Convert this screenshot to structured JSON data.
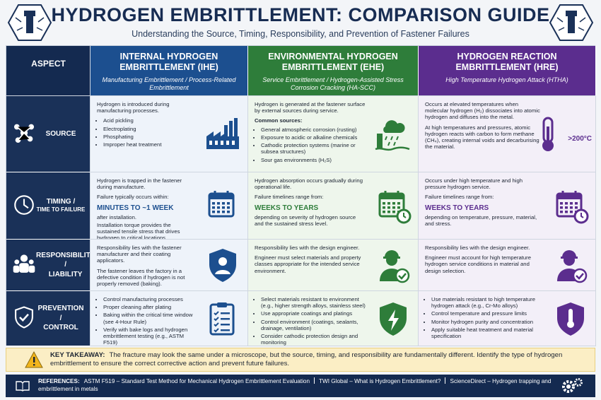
{
  "header": {
    "title": "HYDROGEN EMBRITTLEMENT: COMPARISON GUIDE",
    "subtitle": "Understanding the Source, Timing, Responsibility, and Prevention of Fastener Failures"
  },
  "table": {
    "corner": "ASPECT",
    "columns": [
      {
        "title": "INTERNAL HYDROGEN EMBRITTLEMENT (IHE)",
        "subtitle": "Manufacturing Embrittlement / Process-Related Embrittlement"
      },
      {
        "title": "ENVIRONMENTAL HYDROGEN EMBRITTLEMENT (EHE)",
        "subtitle": "Service Embrittlement / Hydrogen-Assisted Stress Corrosion Cracking (HA-SCC)"
      },
      {
        "title": "HYDROGEN REACTION EMBRITTLEMENT (HRE)",
        "subtitle": "High Temperature Hydrogen Attack (HTHA)"
      }
    ],
    "rows": [
      {
        "label": [
          "SOURCE"
        ],
        "cells": [
          {
            "blocks": [
              {
                "para": "Hydrogen is introduced during manufacturing processes."
              },
              {
                "bullets": [
                  "Acid pickling",
                  "Electroplating",
                  "Phosphating",
                  "Improper heat treatment"
                ]
              }
            ]
          },
          {
            "blocks": [
              {
                "para": "Hydrogen is generated at the fastener surface by external sources during service."
              },
              {
                "heading": "Common sources:"
              },
              {
                "bullets": [
                  "General atmospheric corrosion (rusting)",
                  "Exposure to acidic or alkaline chemicals",
                  "Cathodic protection systems (marine or subsea structures)",
                  "Sour gas environments (H₂S)"
                ]
              }
            ]
          },
          {
            "blocks": [
              {
                "para": "Occurs at elevated temperatures when molecular hydrogen (H₂) dissociates into atomic hydrogen and diffuses into the metal."
              },
              {
                "para": "At high temperatures and pressures, atomic hydrogen reacts with carbon to form methane (CH₄), creating internal voids and decarburising the material."
              }
            ],
            "badge": ">200°C"
          }
        ]
      },
      {
        "label": [
          "TIMING /",
          "TIME TO FAILURE"
        ],
        "cells": [
          {
            "blocks": [
              {
                "para": "Hydrogen is trapped in the fastener during manufacture."
              },
              {
                "para": "Failure typically occurs within:"
              },
              {
                "highlight": "MINUTES TO ~1 WEEK"
              },
              {
                "tight": "after installation."
              },
              {
                "tight": "Installation torque provides the sustained tensile stress that drives hydrogen to critical locations."
              }
            ]
          },
          {
            "blocks": [
              {
                "para": "Hydrogen absorption occurs gradually during operational life."
              },
              {
                "para": "Failure timelines range from:"
              },
              {
                "highlight": "WEEKS TO YEARS"
              },
              {
                "tight": "depending on severity of hydrogen source and the sustained stress level."
              }
            ]
          },
          {
            "blocks": [
              {
                "para": "Occurs under high temperature and high pressure hydrogen service."
              },
              {
                "para": "Failure timelines range from:"
              },
              {
                "highlight": "WEEKS TO YEARS"
              },
              {
                "tight": "depending on temperature, pressure, material, and stress."
              }
            ]
          }
        ]
      },
      {
        "label": [
          "RESPONSIBILITY /",
          "LIABILITY"
        ],
        "cells": [
          {
            "blocks": [
              {
                "para": "Responsibility lies with the fastener manufacturer and their coating applicators."
              },
              {
                "para": "The fastener leaves the factory in a defective condition if hydrogen is not properly removed (baking)."
              }
            ]
          },
          {
            "blocks": [
              {
                "para": "Responsibility lies with the design engineer."
              },
              {
                "para": "Engineer must select materials and property classes appropriate for the intended service environment."
              }
            ]
          },
          {
            "blocks": [
              {
                "para": "Responsibility lies with the design engineer."
              },
              {
                "para": "Engineer must account for high temperature hydrogen service conditions in material and design selection."
              }
            ]
          }
        ]
      },
      {
        "label": [
          "PREVENTION /",
          "CONTROL"
        ],
        "cells": [
          {
            "blocks": [
              {
                "bullets": [
                  "Control manufacturing processes",
                  "Proper cleaning after plating",
                  "Baking within the critical time window (see 4-Hour Rule)",
                  "Verify with bake logs and hydrogen embrittlement testing (e.g., ASTM F519)"
                ]
              }
            ]
          },
          {
            "blocks": [
              {
                "bullets": [
                  "Select materials resistant to environment (e.g., higher strength alloys, stainless steel)",
                  "Use appropriate coatings and platings",
                  "Control environment (coatings, sealants, drainage, ventilation)",
                  "Consider cathodic protection design and monitoring"
                ]
              }
            ]
          },
          {
            "blocks": [
              {
                "bullets": [
                  "Use materials resistant to high temperature hydrogen attack (e.g., Cr-Mo alloys)",
                  "Control temperature and pressure limits",
                  "Monitor hydrogen purity and concentration",
                  "Apply suitable heat treatment and material specification"
                ]
              }
            ]
          }
        ]
      }
    ]
  },
  "takeaway": {
    "label": "KEY TAKEAWAY:",
    "text": "The fracture may look the same under a microscope, but the source, timing, and responsibility are fundamentally different. Identify the type of hydrogen embrittlement to ensure the correct corrective action and prevent future failures."
  },
  "references": {
    "label": "REFERENCES:",
    "items": [
      "ASTM F519 – Standard Test Method for Mechanical Hydrogen Embrittlement Evaluation",
      "TWI Global – What is Hydrogen Embrittlement?",
      "ScienceDirect – Hydrogen trapping and embrittlement in metals"
    ]
  }
}
